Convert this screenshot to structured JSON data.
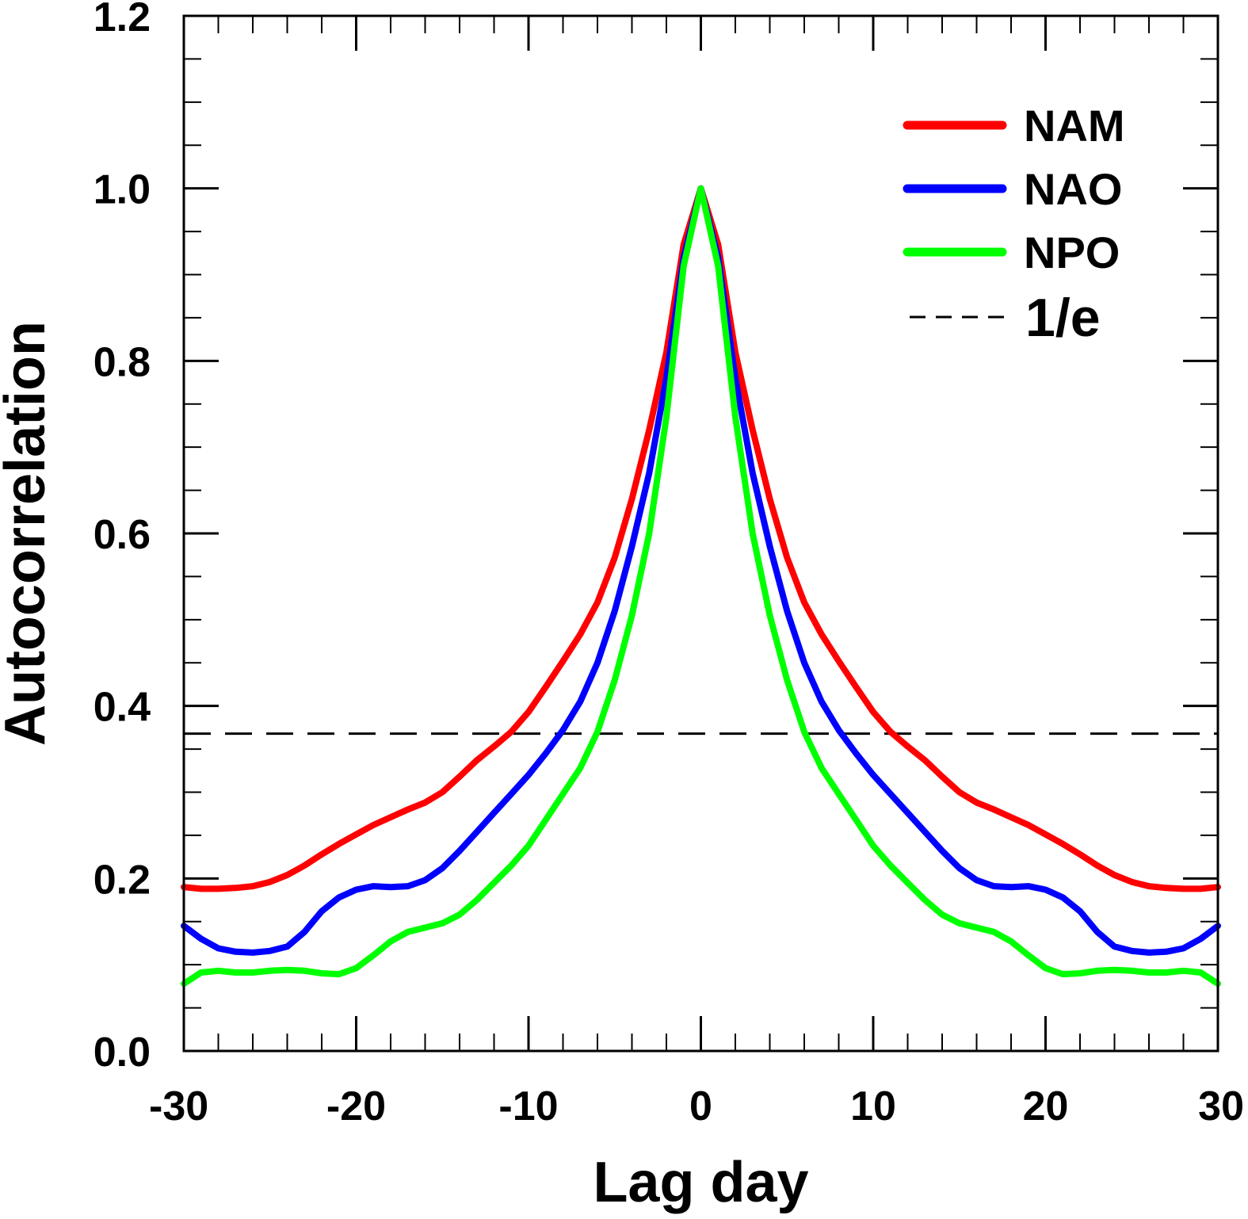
{
  "chart_data": {
    "type": "line",
    "title": "",
    "xlabel": "Lag day",
    "ylabel": "Autocorrelation",
    "xlim": [
      -30,
      30
    ],
    "ylim": [
      0,
      1.2
    ],
    "xticks": [
      -30,
      -20,
      -10,
      0,
      10,
      20,
      30
    ],
    "xtick_labels": [
      "-30",
      "-20",
      "-10",
      "0",
      "10",
      "20",
      "30"
    ],
    "yticks": [
      0,
      0.2,
      0.4,
      0.6,
      0.8,
      1.0,
      1.2
    ],
    "ytick_labels": [
      "0.0",
      "0.2",
      "0.4",
      "0.6",
      "0.8",
      "1.0",
      "1.2"
    ],
    "x_minor_step": 2,
    "y_minor_step": 0.05,
    "grid": false,
    "legend_position": "top-right",
    "x": [
      -30,
      -29,
      -28,
      -27,
      -26,
      -25,
      -24,
      -23,
      -22,
      -21,
      -20,
      -19,
      -18,
      -17,
      -16,
      -15,
      -14,
      -13,
      -12,
      -11,
      -10,
      -9,
      -8,
      -7,
      -6,
      -5,
      -4,
      -3,
      -2,
      -1,
      0,
      1,
      2,
      3,
      4,
      5,
      6,
      7,
      8,
      9,
      10,
      11,
      12,
      13,
      14,
      15,
      16,
      17,
      18,
      19,
      20,
      21,
      22,
      23,
      24,
      25,
      26,
      27,
      28,
      29,
      30
    ],
    "series": [
      {
        "name": "NAM",
        "color": "#ff0000",
        "values": [
          0.19,
          0.188,
          0.188,
          0.189,
          0.191,
          0.196,
          0.204,
          0.215,
          0.228,
          0.24,
          0.251,
          0.262,
          0.271,
          0.28,
          0.288,
          0.3,
          0.318,
          0.337,
          0.353,
          0.37,
          0.393,
          0.422,
          0.452,
          0.483,
          0.52,
          0.572,
          0.64,
          0.72,
          0.81,
          0.935,
          1.0,
          0.935,
          0.81,
          0.72,
          0.64,
          0.572,
          0.52,
          0.483,
          0.452,
          0.422,
          0.393,
          0.37,
          0.353,
          0.337,
          0.318,
          0.3,
          0.288,
          0.28,
          0.271,
          0.262,
          0.251,
          0.24,
          0.228,
          0.215,
          0.204,
          0.196,
          0.191,
          0.189,
          0.188,
          0.188,
          0.19
        ]
      },
      {
        "name": "NAO",
        "color": "#0000ff",
        "values": [
          0.145,
          0.13,
          0.119,
          0.115,
          0.114,
          0.116,
          0.121,
          0.138,
          0.162,
          0.178,
          0.187,
          0.191,
          0.19,
          0.191,
          0.198,
          0.212,
          0.232,
          0.254,
          0.276,
          0.298,
          0.32,
          0.345,
          0.372,
          0.405,
          0.45,
          0.51,
          0.585,
          0.67,
          0.78,
          0.92,
          1.0,
          0.92,
          0.78,
          0.67,
          0.585,
          0.51,
          0.45,
          0.405,
          0.372,
          0.345,
          0.32,
          0.298,
          0.276,
          0.254,
          0.232,
          0.212,
          0.198,
          0.191,
          0.19,
          0.191,
          0.187,
          0.178,
          0.162,
          0.138,
          0.121,
          0.116,
          0.114,
          0.115,
          0.119,
          0.13,
          0.145
        ]
      },
      {
        "name": "NPO",
        "color": "#00ff00",
        "values": [
          0.078,
          0.091,
          0.093,
          0.091,
          0.091,
          0.093,
          0.094,
          0.093,
          0.09,
          0.089,
          0.096,
          0.111,
          0.127,
          0.138,
          0.143,
          0.148,
          0.158,
          0.175,
          0.195,
          0.215,
          0.238,
          0.268,
          0.298,
          0.328,
          0.37,
          0.43,
          0.505,
          0.6,
          0.735,
          0.91,
          1.0,
          0.91,
          0.735,
          0.6,
          0.505,
          0.43,
          0.37,
          0.328,
          0.298,
          0.268,
          0.238,
          0.215,
          0.195,
          0.175,
          0.158,
          0.148,
          0.143,
          0.138,
          0.127,
          0.111,
          0.096,
          0.089,
          0.09,
          0.093,
          0.094,
          0.093,
          0.091,
          0.091,
          0.093,
          0.091,
          0.078
        ]
      }
    ],
    "reference_line": {
      "name": "1/e",
      "y": 0.3679,
      "color": "#000000",
      "style": "dashed"
    }
  }
}
